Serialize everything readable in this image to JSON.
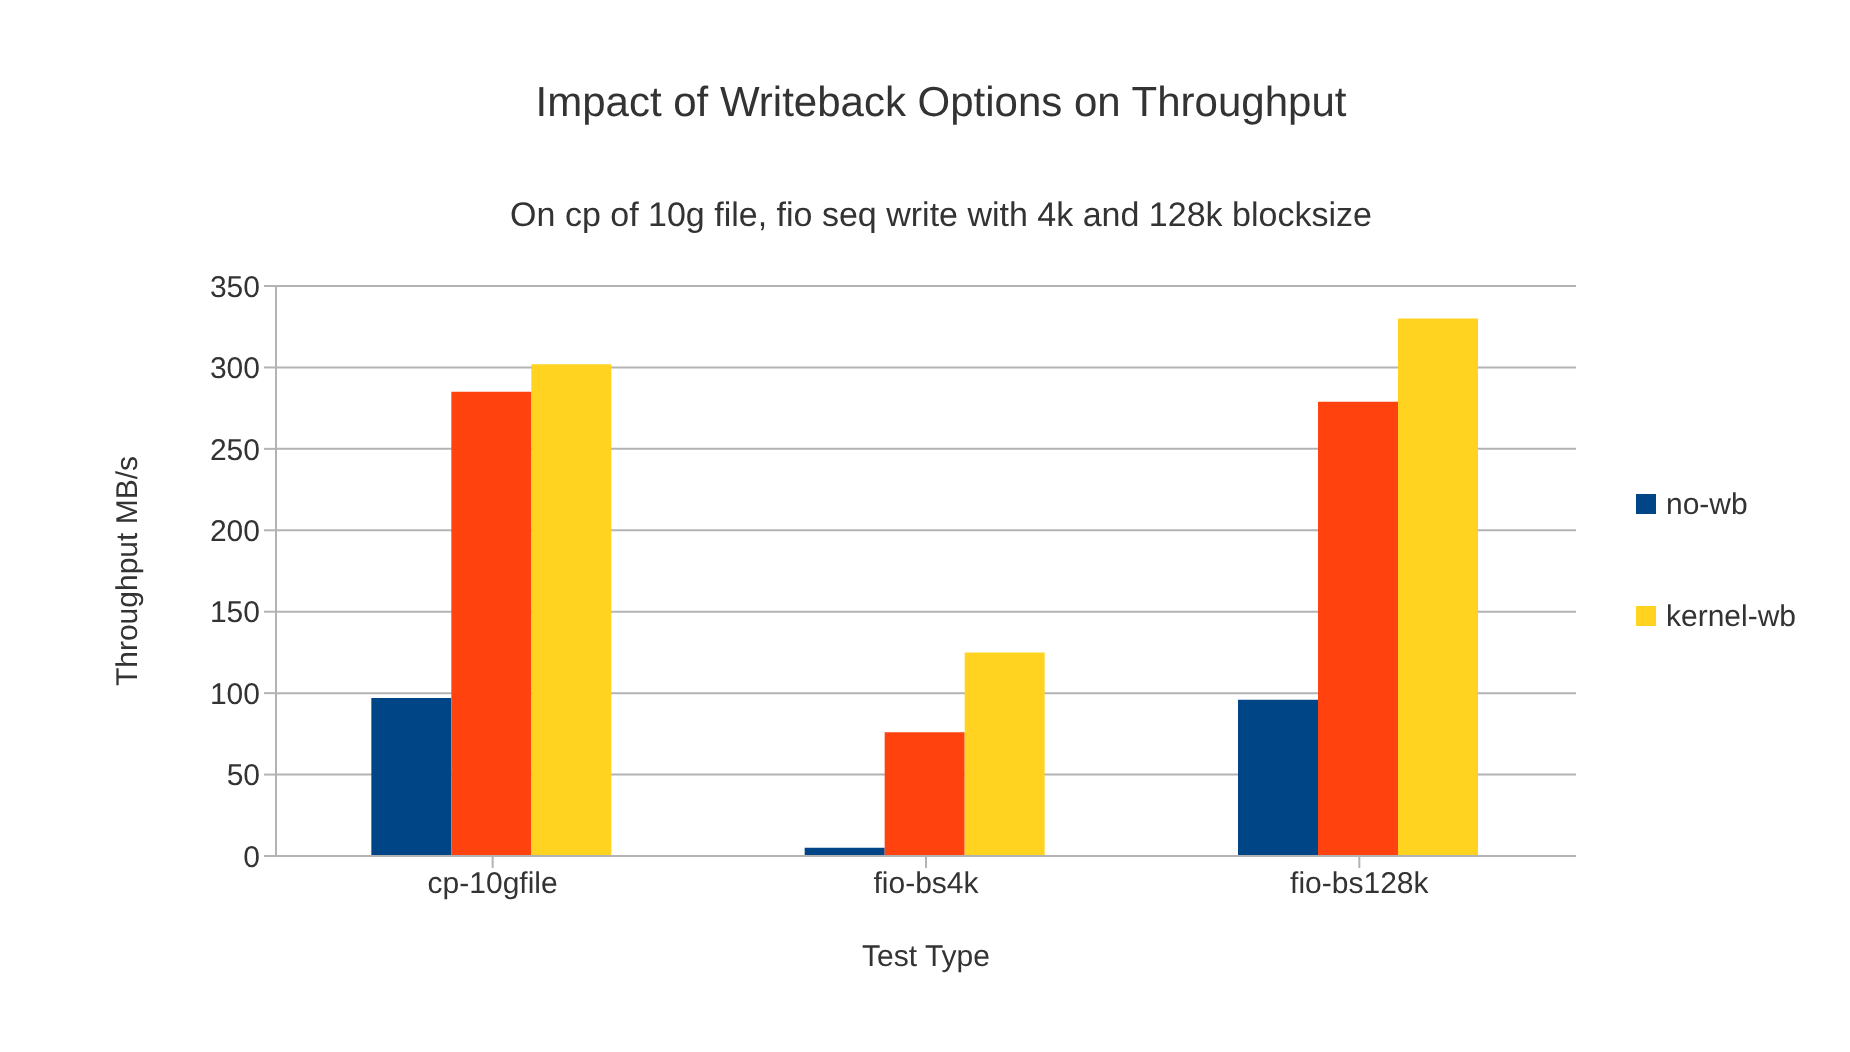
{
  "chart_data": {
    "type": "bar",
    "title": "Impact of Writeback Options on Throughput",
    "subtitle": "On cp of 10g file, fio seq write with 4k and 128k blocksize",
    "xlabel": "Test Type",
    "ylabel": "Throughput MB/s",
    "categories": [
      "cp-10gfile",
      "fio-bs4k",
      "fio-bs128k"
    ],
    "series": [
      {
        "name": "no-wb",
        "color": "#004586",
        "values": [
          97,
          5,
          96
        ]
      },
      {
        "color": "#ff420e",
        "values": [
          285,
          76,
          279
        ]
      },
      {
        "name": "kernel-wb",
        "color": "#ffd320",
        "values": [
          302,
          125,
          330
        ]
      }
    ],
    "ylim": [
      0,
      350
    ],
    "yticks": [
      0,
      50,
      100,
      150,
      200,
      250,
      300,
      350
    ],
    "grid": "y",
    "legend": "right"
  }
}
